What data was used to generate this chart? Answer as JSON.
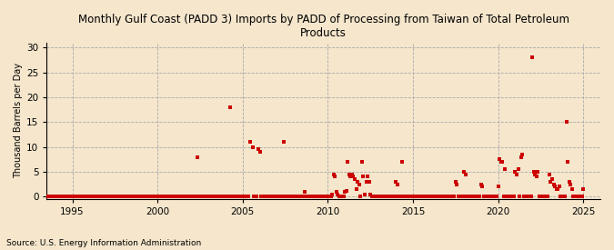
{
  "title": "Monthly Gulf Coast (PADD 3) Imports by PADD of Processing from Taiwan of Total Petroleum\nProducts",
  "ylabel": "Thousand Barrels per Day",
  "source": "Source: U.S. Energy Information Administration",
  "background_color": "#f5e6cc",
  "marker_color": "#cc0000",
  "xlim": [
    1993.5,
    2026.0
  ],
  "ylim": [
    -0.5,
    31
  ],
  "yticks": [
    0,
    5,
    10,
    15,
    20,
    25,
    30
  ],
  "xticks": [
    1995,
    2000,
    2005,
    2010,
    2015,
    2020,
    2025
  ],
  "data_points": [
    [
      1993.583,
      0
    ],
    [
      1993.667,
      0
    ],
    [
      1993.75,
      0
    ],
    [
      1993.833,
      0
    ],
    [
      1993.917,
      0
    ],
    [
      1994.0,
      0
    ],
    [
      1994.083,
      0
    ],
    [
      1994.167,
      0
    ],
    [
      1994.25,
      0
    ],
    [
      1994.333,
      0
    ],
    [
      1994.417,
      0
    ],
    [
      1994.5,
      0
    ],
    [
      1994.583,
      0
    ],
    [
      1994.667,
      0
    ],
    [
      1994.75,
      0
    ],
    [
      1994.833,
      0
    ],
    [
      1994.917,
      0
    ],
    [
      1995.0,
      0
    ],
    [
      1995.083,
      0
    ],
    [
      1995.167,
      0
    ],
    [
      1995.25,
      0
    ],
    [
      1995.333,
      0
    ],
    [
      1995.417,
      0
    ],
    [
      1995.5,
      0
    ],
    [
      1995.583,
      0
    ],
    [
      1995.667,
      0
    ],
    [
      1995.75,
      0
    ],
    [
      1995.833,
      0
    ],
    [
      1995.917,
      0
    ],
    [
      1996.0,
      0
    ],
    [
      1996.083,
      0
    ],
    [
      1996.167,
      0
    ],
    [
      1996.25,
      0
    ],
    [
      1996.333,
      0
    ],
    [
      1996.417,
      0
    ],
    [
      1996.5,
      0
    ],
    [
      1996.583,
      0
    ],
    [
      1996.667,
      0
    ],
    [
      1996.75,
      0
    ],
    [
      1996.833,
      0
    ],
    [
      1996.917,
      0
    ],
    [
      1997.0,
      0
    ],
    [
      1997.083,
      0
    ],
    [
      1997.167,
      0
    ],
    [
      1997.25,
      0
    ],
    [
      1997.333,
      0
    ],
    [
      1997.417,
      0
    ],
    [
      1997.5,
      0
    ],
    [
      1997.583,
      0
    ],
    [
      1997.667,
      0
    ],
    [
      1997.75,
      0
    ],
    [
      1997.833,
      0
    ],
    [
      1997.917,
      0
    ],
    [
      1998.0,
      0
    ],
    [
      1998.083,
      0
    ],
    [
      1998.167,
      0
    ],
    [
      1998.25,
      0
    ],
    [
      1998.333,
      0
    ],
    [
      1998.417,
      0
    ],
    [
      1998.5,
      0
    ],
    [
      1998.583,
      0
    ],
    [
      1998.667,
      0
    ],
    [
      1998.75,
      0
    ],
    [
      1998.833,
      0
    ],
    [
      1998.917,
      0
    ],
    [
      1999.0,
      0
    ],
    [
      1999.083,
      0
    ],
    [
      1999.167,
      0
    ],
    [
      1999.25,
      0
    ],
    [
      1999.333,
      0
    ],
    [
      1999.417,
      0
    ],
    [
      1999.5,
      0
    ],
    [
      1999.583,
      0
    ],
    [
      1999.667,
      0
    ],
    [
      1999.75,
      0
    ],
    [
      1999.833,
      0
    ],
    [
      1999.917,
      0
    ],
    [
      2000.0,
      0
    ],
    [
      2000.083,
      0
    ],
    [
      2000.167,
      0
    ],
    [
      2000.25,
      0
    ],
    [
      2000.333,
      0
    ],
    [
      2000.417,
      0
    ],
    [
      2000.5,
      0
    ],
    [
      2000.583,
      0
    ],
    [
      2000.667,
      0
    ],
    [
      2000.75,
      0
    ],
    [
      2000.833,
      0
    ],
    [
      2000.917,
      0
    ],
    [
      2001.0,
      0
    ],
    [
      2001.083,
      0
    ],
    [
      2001.167,
      0
    ],
    [
      2001.25,
      0
    ],
    [
      2001.333,
      0
    ],
    [
      2001.417,
      0
    ],
    [
      2001.5,
      0
    ],
    [
      2001.583,
      0
    ],
    [
      2001.667,
      0
    ],
    [
      2001.75,
      0
    ],
    [
      2001.833,
      0
    ],
    [
      2001.917,
      0
    ],
    [
      2002.0,
      0
    ],
    [
      2002.083,
      0
    ],
    [
      2002.167,
      0
    ],
    [
      2002.25,
      0
    ],
    [
      2002.333,
      8.0
    ],
    [
      2002.417,
      0
    ],
    [
      2002.5,
      0
    ],
    [
      2002.583,
      0
    ],
    [
      2002.667,
      0
    ],
    [
      2002.75,
      0
    ],
    [
      2002.833,
      0
    ],
    [
      2002.917,
      0
    ],
    [
      2003.0,
      0
    ],
    [
      2003.083,
      0
    ],
    [
      2003.167,
      0
    ],
    [
      2003.25,
      0
    ],
    [
      2003.333,
      0
    ],
    [
      2003.417,
      0
    ],
    [
      2003.5,
      0
    ],
    [
      2003.583,
      0
    ],
    [
      2003.667,
      0
    ],
    [
      2003.75,
      0
    ],
    [
      2003.833,
      0
    ],
    [
      2003.917,
      0
    ],
    [
      2004.0,
      0
    ],
    [
      2004.083,
      0
    ],
    [
      2004.167,
      0
    ],
    [
      2004.25,
      18.0
    ],
    [
      2004.333,
      0
    ],
    [
      2004.417,
      0
    ],
    [
      2004.5,
      0
    ],
    [
      2004.583,
      0
    ],
    [
      2004.667,
      0
    ],
    [
      2004.75,
      0
    ],
    [
      2004.833,
      0
    ],
    [
      2004.917,
      0
    ],
    [
      2005.0,
      0
    ],
    [
      2005.083,
      0
    ],
    [
      2005.167,
      0
    ],
    [
      2005.25,
      0
    ],
    [
      2005.333,
      0
    ],
    [
      2005.417,
      11.0
    ],
    [
      2005.583,
      10.0
    ],
    [
      2005.667,
      0
    ],
    [
      2005.75,
      0
    ],
    [
      2005.833,
      0
    ],
    [
      2005.917,
      9.5
    ],
    [
      2006.0,
      9.0
    ],
    [
      2006.083,
      0
    ],
    [
      2006.167,
      0
    ],
    [
      2006.25,
      0
    ],
    [
      2006.333,
      0
    ],
    [
      2006.417,
      0
    ],
    [
      2006.5,
      0
    ],
    [
      2006.583,
      0
    ],
    [
      2006.667,
      0
    ],
    [
      2006.75,
      0
    ],
    [
      2006.833,
      0
    ],
    [
      2006.917,
      0
    ],
    [
      2007.0,
      0
    ],
    [
      2007.083,
      0
    ],
    [
      2007.167,
      0
    ],
    [
      2007.25,
      0
    ],
    [
      2007.333,
      0
    ],
    [
      2007.417,
      11.0
    ],
    [
      2007.5,
      0
    ],
    [
      2007.583,
      0
    ],
    [
      2007.667,
      0
    ],
    [
      2007.75,
      0
    ],
    [
      2007.833,
      0
    ],
    [
      2007.917,
      0
    ],
    [
      2008.0,
      0
    ],
    [
      2008.083,
      0
    ],
    [
      2008.167,
      0
    ],
    [
      2008.25,
      0
    ],
    [
      2008.333,
      0
    ],
    [
      2008.417,
      0
    ],
    [
      2008.5,
      0
    ],
    [
      2008.583,
      0
    ],
    [
      2008.667,
      1.0
    ],
    [
      2008.75,
      0
    ],
    [
      2008.833,
      0
    ],
    [
      2008.917,
      0
    ],
    [
      2009.0,
      0
    ],
    [
      2009.083,
      0
    ],
    [
      2009.167,
      0
    ],
    [
      2009.25,
      0
    ],
    [
      2009.333,
      0
    ],
    [
      2009.417,
      0
    ],
    [
      2009.5,
      0
    ],
    [
      2009.583,
      0
    ],
    [
      2009.667,
      0
    ],
    [
      2009.75,
      0
    ],
    [
      2009.833,
      0
    ],
    [
      2009.917,
      0
    ],
    [
      2010.0,
      0
    ],
    [
      2010.083,
      0
    ],
    [
      2010.167,
      0
    ],
    [
      2010.25,
      0.5
    ],
    [
      2010.333,
      4.5
    ],
    [
      2010.417,
      4.0
    ],
    [
      2010.5,
      1.0
    ],
    [
      2010.583,
      0.5
    ],
    [
      2010.667,
      0
    ],
    [
      2010.75,
      0
    ],
    [
      2010.833,
      0
    ],
    [
      2010.917,
      0
    ],
    [
      2011.0,
      1.0
    ],
    [
      2011.083,
      1.2
    ],
    [
      2011.167,
      7.0
    ],
    [
      2011.25,
      4.5
    ],
    [
      2011.333,
      4.0
    ],
    [
      2011.417,
      4.5
    ],
    [
      2011.5,
      4.0
    ],
    [
      2011.583,
      3.5
    ],
    [
      2011.667,
      1.5
    ],
    [
      2011.75,
      3.0
    ],
    [
      2011.833,
      2.5
    ],
    [
      2011.917,
      0
    ],
    [
      2012.0,
      7.0
    ],
    [
      2012.083,
      4.0
    ],
    [
      2012.167,
      0.5
    ],
    [
      2012.25,
      3.0
    ],
    [
      2012.333,
      4.0
    ],
    [
      2012.417,
      3.0
    ],
    [
      2012.5,
      0.5
    ],
    [
      2012.583,
      0
    ],
    [
      2012.667,
      0
    ],
    [
      2012.75,
      0
    ],
    [
      2012.833,
      0
    ],
    [
      2012.917,
      0
    ],
    [
      2013.0,
      0
    ],
    [
      2013.083,
      0
    ],
    [
      2013.167,
      0
    ],
    [
      2013.25,
      0
    ],
    [
      2013.333,
      0
    ],
    [
      2013.417,
      0
    ],
    [
      2013.5,
      0
    ],
    [
      2013.583,
      0
    ],
    [
      2013.667,
      0
    ],
    [
      2013.75,
      0
    ],
    [
      2013.833,
      0
    ],
    [
      2013.917,
      0
    ],
    [
      2014.0,
      3.0
    ],
    [
      2014.083,
      2.5
    ],
    [
      2014.167,
      0
    ],
    [
      2014.25,
      0
    ],
    [
      2014.333,
      7.0
    ],
    [
      2014.417,
      0
    ],
    [
      2014.5,
      0
    ],
    [
      2014.583,
      0
    ],
    [
      2014.667,
      0
    ],
    [
      2014.75,
      0
    ],
    [
      2014.833,
      0
    ],
    [
      2014.917,
      0
    ],
    [
      2015.0,
      0
    ],
    [
      2015.083,
      0
    ],
    [
      2015.167,
      0
    ],
    [
      2015.25,
      0
    ],
    [
      2015.333,
      0
    ],
    [
      2015.417,
      0
    ],
    [
      2015.5,
      0
    ],
    [
      2015.583,
      0
    ],
    [
      2015.667,
      0
    ],
    [
      2015.75,
      0
    ],
    [
      2015.833,
      0
    ],
    [
      2015.917,
      0
    ],
    [
      2016.0,
      0
    ],
    [
      2016.083,
      0
    ],
    [
      2016.167,
      0
    ],
    [
      2016.25,
      0
    ],
    [
      2016.333,
      0
    ],
    [
      2016.417,
      0
    ],
    [
      2016.5,
      0
    ],
    [
      2016.583,
      0
    ],
    [
      2016.667,
      0
    ],
    [
      2016.75,
      0
    ],
    [
      2016.833,
      0
    ],
    [
      2016.917,
      0
    ],
    [
      2017.0,
      0
    ],
    [
      2017.083,
      0
    ],
    [
      2017.167,
      0
    ],
    [
      2017.25,
      0
    ],
    [
      2017.333,
      0
    ],
    [
      2017.417,
      0
    ],
    [
      2017.5,
      3.0
    ],
    [
      2017.583,
      2.5
    ],
    [
      2017.667,
      0
    ],
    [
      2017.75,
      0
    ],
    [
      2017.833,
      0
    ],
    [
      2017.917,
      0
    ],
    [
      2018.0,
      5.0
    ],
    [
      2018.083,
      4.5
    ],
    [
      2018.167,
      0
    ],
    [
      2018.25,
      0
    ],
    [
      2018.333,
      0
    ],
    [
      2018.417,
      0
    ],
    [
      2018.5,
      0
    ],
    [
      2018.583,
      0
    ],
    [
      2018.667,
      0
    ],
    [
      2018.75,
      0
    ],
    [
      2018.833,
      0
    ],
    [
      2018.917,
      0
    ],
    [
      2019.0,
      2.5
    ],
    [
      2019.083,
      2.0
    ],
    [
      2019.167,
      0
    ],
    [
      2019.25,
      0
    ],
    [
      2019.333,
      0
    ],
    [
      2019.417,
      0
    ],
    [
      2019.5,
      0
    ],
    [
      2019.583,
      0
    ],
    [
      2019.667,
      0
    ],
    [
      2019.75,
      0
    ],
    [
      2019.833,
      0
    ],
    [
      2019.917,
      0
    ],
    [
      2020.0,
      2.0
    ],
    [
      2020.083,
      7.5
    ],
    [
      2020.167,
      7.0
    ],
    [
      2020.25,
      7.0
    ],
    [
      2020.333,
      0
    ],
    [
      2020.417,
      5.5
    ],
    [
      2020.5,
      0
    ],
    [
      2020.583,
      0
    ],
    [
      2020.667,
      0
    ],
    [
      2020.75,
      0
    ],
    [
      2020.833,
      0
    ],
    [
      2020.917,
      0
    ],
    [
      2021.0,
      5.0
    ],
    [
      2021.083,
      4.5
    ],
    [
      2021.167,
      5.5
    ],
    [
      2021.25,
      0
    ],
    [
      2021.333,
      8.0
    ],
    [
      2021.417,
      8.5
    ],
    [
      2021.5,
      0
    ],
    [
      2021.583,
      0
    ],
    [
      2021.667,
      0
    ],
    [
      2021.75,
      0
    ],
    [
      2021.833,
      0
    ],
    [
      2021.917,
      0
    ],
    [
      2022.0,
      28.0
    ],
    [
      2022.083,
      5.0
    ],
    [
      2022.167,
      4.5
    ],
    [
      2022.25,
      4.0
    ],
    [
      2022.333,
      5.0
    ],
    [
      2022.417,
      0
    ],
    [
      2022.5,
      0
    ],
    [
      2022.583,
      0
    ],
    [
      2022.667,
      0
    ],
    [
      2022.75,
      0
    ],
    [
      2022.833,
      0
    ],
    [
      2022.917,
      0
    ],
    [
      2023.0,
      4.5
    ],
    [
      2023.083,
      3.0
    ],
    [
      2023.167,
      3.5
    ],
    [
      2023.25,
      2.5
    ],
    [
      2023.333,
      2.0
    ],
    [
      2023.417,
      1.5
    ],
    [
      2023.5,
      1.5
    ],
    [
      2023.583,
      2.0
    ],
    [
      2023.667,
      0
    ],
    [
      2023.75,
      0
    ],
    [
      2023.833,
      0
    ],
    [
      2023.917,
      0
    ],
    [
      2024.0,
      15.0
    ],
    [
      2024.083,
      7.0
    ],
    [
      2024.167,
      3.0
    ],
    [
      2024.25,
      2.5
    ],
    [
      2024.333,
      1.5
    ],
    [
      2024.417,
      0
    ],
    [
      2024.5,
      0
    ],
    [
      2024.583,
      0
    ],
    [
      2024.667,
      0
    ],
    [
      2024.75,
      0
    ],
    [
      2024.833,
      0
    ],
    [
      2024.917,
      0
    ],
    [
      2025.0,
      1.5
    ]
  ]
}
